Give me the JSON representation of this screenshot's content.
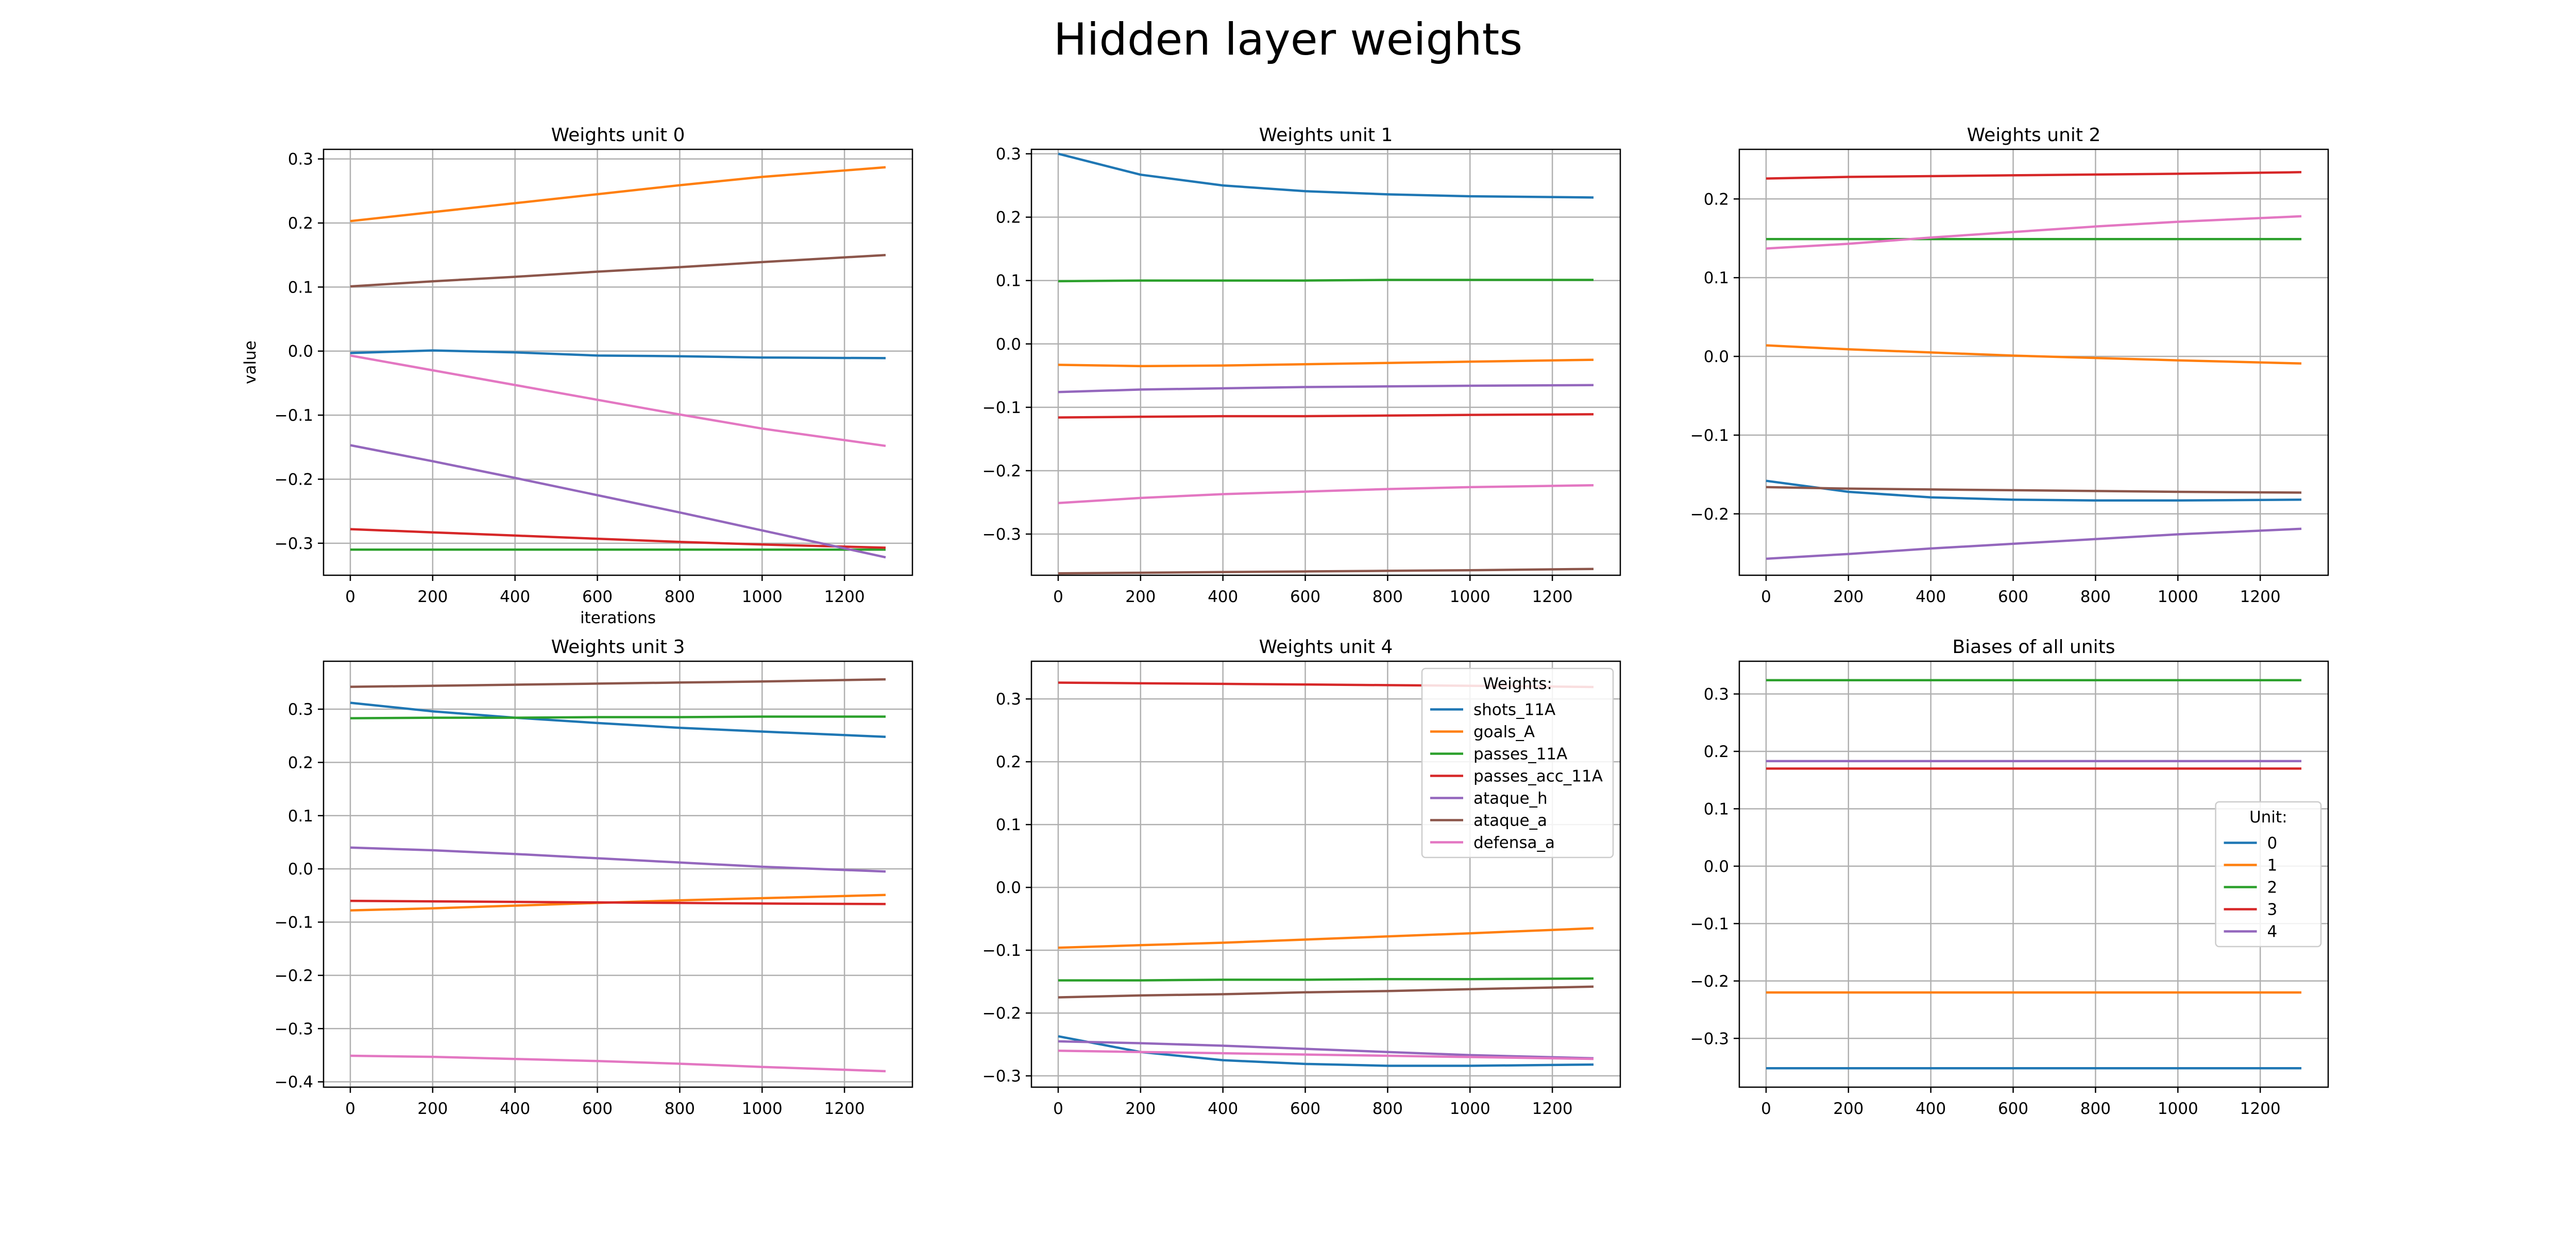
{
  "figure": {
    "title": "Hidden layer weights"
  },
  "colors": {
    "c0": "#1f77b4",
    "c1": "#ff7f0e",
    "c2": "#2ca02c",
    "c3": "#d62728",
    "c4": "#9467bd",
    "c5": "#8c564b",
    "c6": "#e377c2",
    "grid": "#b0b0b0"
  },
  "chart_data": [
    {
      "type": "line",
      "title": "Weights unit 0",
      "xlabel": "iterations",
      "ylabel": "value",
      "xlim": [
        -65,
        1365
      ],
      "ylim": [
        -0.35,
        0.315
      ],
      "xticks": [
        0,
        200,
        400,
        600,
        800,
        1000,
        1200
      ],
      "yticks": [
        -0.3,
        -0.2,
        -0.1,
        0.0,
        0.1,
        0.2,
        0.3
      ],
      "grid": true,
      "x": [
        0,
        200,
        400,
        600,
        800,
        1000,
        1300
      ],
      "series": [
        {
          "values": [
            -0.003,
            0.001,
            -0.002,
            -0.007,
            -0.008,
            -0.01,
            -0.011
          ]
        },
        {
          "values": [
            0.203,
            0.217,
            0.231,
            0.245,
            0.259,
            0.272,
            0.287
          ]
        },
        {
          "values": [
            -0.31,
            -0.31,
            -0.31,
            -0.31,
            -0.31,
            -0.31,
            -0.31
          ]
        },
        {
          "values": [
            -0.278,
            -0.283,
            -0.288,
            -0.293,
            -0.298,
            -0.302,
            -0.307
          ]
        },
        {
          "values": [
            -0.147,
            -0.172,
            -0.198,
            -0.225,
            -0.252,
            -0.28,
            -0.322
          ]
        },
        {
          "values": [
            0.101,
            0.109,
            0.116,
            0.124,
            0.131,
            0.139,
            0.15
          ]
        },
        {
          "values": [
            -0.007,
            -0.03,
            -0.053,
            -0.076,
            -0.099,
            -0.121,
            -0.148
          ]
        }
      ]
    },
    {
      "type": "line",
      "title": "Weights unit 1",
      "xlabel": "",
      "ylabel": "",
      "xlim": [
        -65,
        1365
      ],
      "ylim": [
        -0.365,
        0.307
      ],
      "xticks": [
        0,
        200,
        400,
        600,
        800,
        1000,
        1200
      ],
      "yticks": [
        -0.3,
        -0.2,
        -0.1,
        0.0,
        0.1,
        0.2,
        0.3
      ],
      "grid": true,
      "x": [
        0,
        200,
        400,
        600,
        800,
        1000,
        1300
      ],
      "series": [
        {
          "values": [
            0.3,
            0.267,
            0.25,
            0.241,
            0.236,
            0.233,
            0.231
          ]
        },
        {
          "values": [
            -0.033,
            -0.035,
            -0.034,
            -0.032,
            -0.03,
            -0.028,
            -0.025
          ]
        },
        {
          "values": [
            0.099,
            0.1,
            0.1,
            0.1,
            0.101,
            0.101,
            0.101
          ]
        },
        {
          "values": [
            -0.116,
            -0.115,
            -0.114,
            -0.114,
            -0.113,
            -0.112,
            -0.111
          ]
        },
        {
          "values": [
            -0.076,
            -0.072,
            -0.07,
            -0.068,
            -0.067,
            -0.066,
            -0.065
          ]
        },
        {
          "values": [
            -0.362,
            -0.361,
            -0.36,
            -0.359,
            -0.358,
            -0.357,
            -0.355
          ]
        },
        {
          "values": [
            -0.251,
            -0.243,
            -0.237,
            -0.233,
            -0.229,
            -0.226,
            -0.223
          ]
        }
      ]
    },
    {
      "type": "line",
      "title": "Weights unit 2",
      "xlabel": "",
      "ylabel": "",
      "xlim": [
        -65,
        1365
      ],
      "ylim": [
        -0.278,
        0.263
      ],
      "xticks": [
        0,
        200,
        400,
        600,
        800,
        1000,
        1200
      ],
      "yticks": [
        -0.2,
        -0.1,
        0.0,
        0.1,
        0.2
      ],
      "grid": true,
      "x": [
        0,
        200,
        400,
        600,
        800,
        1000,
        1300
      ],
      "series": [
        {
          "values": [
            -0.158,
            -0.172,
            -0.179,
            -0.182,
            -0.183,
            -0.183,
            -0.182
          ]
        },
        {
          "values": [
            0.014,
            0.009,
            0.005,
            0.001,
            -0.002,
            -0.005,
            -0.009
          ]
        },
        {
          "values": [
            0.149,
            0.149,
            0.149,
            0.149,
            0.149,
            0.149,
            0.149
          ]
        },
        {
          "values": [
            0.226,
            0.228,
            0.229,
            0.23,
            0.231,
            0.232,
            0.234
          ]
        },
        {
          "values": [
            -0.257,
            -0.251,
            -0.244,
            -0.238,
            -0.232,
            -0.226,
            -0.219
          ]
        },
        {
          "values": [
            -0.166,
            -0.168,
            -0.169,
            -0.17,
            -0.171,
            -0.172,
            -0.173
          ]
        },
        {
          "values": [
            0.137,
            0.143,
            0.151,
            0.158,
            0.165,
            0.171,
            0.178
          ]
        }
      ]
    },
    {
      "type": "line",
      "title": "Weights unit 3",
      "xlabel": "",
      "ylabel": "",
      "xlim": [
        -65,
        1365
      ],
      "ylim": [
        -0.41,
        0.39
      ],
      "xticks": [
        0,
        200,
        400,
        600,
        800,
        1000,
        1200
      ],
      "yticks": [
        -0.4,
        -0.3,
        -0.2,
        -0.1,
        0.0,
        0.1,
        0.2,
        0.3
      ],
      "grid": true,
      "x": [
        0,
        200,
        400,
        600,
        800,
        1000,
        1300
      ],
      "series": [
        {
          "values": [
            0.312,
            0.296,
            0.284,
            0.274,
            0.265,
            0.258,
            0.248
          ]
        },
        {
          "values": [
            -0.078,
            -0.074,
            -0.069,
            -0.064,
            -0.059,
            -0.055,
            -0.049
          ]
        },
        {
          "values": [
            0.283,
            0.284,
            0.284,
            0.285,
            0.285,
            0.286,
            0.286
          ]
        },
        {
          "values": [
            -0.06,
            -0.061,
            -0.062,
            -0.063,
            -0.064,
            -0.065,
            -0.066
          ]
        },
        {
          "values": [
            0.04,
            0.035,
            0.028,
            0.02,
            0.012,
            0.004,
            -0.005
          ]
        },
        {
          "values": [
            0.342,
            0.344,
            0.346,
            0.348,
            0.35,
            0.352,
            0.356
          ]
        },
        {
          "values": [
            -0.351,
            -0.353,
            -0.357,
            -0.361,
            -0.366,
            -0.372,
            -0.38
          ]
        }
      ]
    },
    {
      "type": "line",
      "title": "Weights unit 4",
      "xlabel": "",
      "ylabel": "",
      "xlim": [
        -65,
        1365
      ],
      "ylim": [
        -0.318,
        0.36
      ],
      "xticks": [
        0,
        200,
        400,
        600,
        800,
        1000,
        1200
      ],
      "yticks": [
        -0.3,
        -0.2,
        -0.1,
        0.0,
        0.1,
        0.2,
        0.3
      ],
      "grid": true,
      "x": [
        0,
        200,
        400,
        600,
        800,
        1000,
        1300
      ],
      "series": [
        {
          "values": [
            -0.237,
            -0.262,
            -0.275,
            -0.281,
            -0.284,
            -0.284,
            -0.282
          ]
        },
        {
          "values": [
            -0.096,
            -0.092,
            -0.088,
            -0.083,
            -0.078,
            -0.073,
            -0.065
          ]
        },
        {
          "values": [
            -0.148,
            -0.148,
            -0.147,
            -0.147,
            -0.146,
            -0.146,
            -0.145
          ]
        },
        {
          "values": [
            0.326,
            0.325,
            0.324,
            0.323,
            0.322,
            0.321,
            0.319
          ]
        },
        {
          "values": [
            -0.245,
            -0.248,
            -0.252,
            -0.257,
            -0.262,
            -0.267,
            -0.272
          ]
        },
        {
          "values": [
            -0.175,
            -0.172,
            -0.17,
            -0.167,
            -0.165,
            -0.162,
            -0.158
          ]
        },
        {
          "values": [
            -0.26,
            -0.262,
            -0.264,
            -0.266,
            -0.268,
            -0.27,
            -0.273
          ]
        }
      ],
      "legend": {
        "title": "Weights:",
        "position": "upper right",
        "entries": [
          "shots_11A",
          "goals_A",
          "passes_11A",
          "passes_acc_11A",
          "ataque_h",
          "ataque_a",
          "defensa_a"
        ]
      }
    },
    {
      "type": "line",
      "title": "Biases of all units",
      "xlabel": "",
      "ylabel": "",
      "xlim": [
        -65,
        1365
      ],
      "ylim": [
        -0.385,
        0.357
      ],
      "xticks": [
        0,
        200,
        400,
        600,
        800,
        1000,
        1200
      ],
      "yticks": [
        -0.3,
        -0.2,
        -0.1,
        0.0,
        0.1,
        0.2,
        0.3
      ],
      "grid": true,
      "x": [
        0,
        200,
        400,
        600,
        800,
        1000,
        1300
      ],
      "series": [
        {
          "values": [
            -0.352,
            -0.352,
            -0.352,
            -0.352,
            -0.352,
            -0.352,
            -0.352
          ]
        },
        {
          "values": [
            -0.22,
            -0.22,
            -0.22,
            -0.22,
            -0.22,
            -0.22,
            -0.22
          ]
        },
        {
          "values": [
            0.324,
            0.324,
            0.324,
            0.324,
            0.324,
            0.324,
            0.324
          ]
        },
        {
          "values": [
            0.17,
            0.17,
            0.17,
            0.17,
            0.17,
            0.17,
            0.17
          ]
        },
        {
          "values": [
            0.183,
            0.183,
            0.183,
            0.183,
            0.183,
            0.183,
            0.183
          ]
        }
      ],
      "legend": {
        "title": "Unit:",
        "position": "center right",
        "entries": [
          "0",
          "1",
          "2",
          "3",
          "4"
        ]
      }
    }
  ]
}
